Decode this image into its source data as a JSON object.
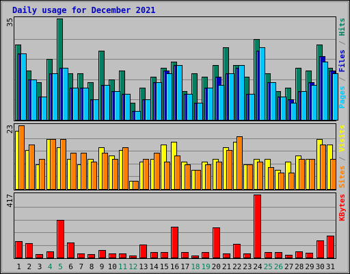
{
  "chart_data": {
    "type": "bar",
    "title": "Daily usage for December 2021",
    "days": [
      "1",
      "2",
      "3",
      "4",
      "5",
      "6",
      "7",
      "8",
      "9",
      "10",
      "11",
      "12",
      "13",
      "14",
      "15",
      "16",
      "17",
      "18",
      "19",
      "20",
      "21",
      "22",
      "23",
      "24",
      "25",
      "26",
      "27",
      "28",
      "29",
      "30",
      "31"
    ],
    "weekend_days": [
      "4",
      "5",
      "11",
      "12",
      "18",
      "19",
      "25",
      "26"
    ],
    "panels": [
      {
        "id": "hits-files-pages",
        "max_label": "35",
        "max": 35,
        "legend": [
          {
            "text": "Pages",
            "color": "#00c8ff"
          },
          {
            "text": " / ",
            "color": "#808080"
          },
          {
            "text": "Files",
            "color": "#0000c0"
          },
          {
            "text": " / ",
            "color": "#808080"
          },
          {
            "text": "Hits",
            "color": "#008060"
          }
        ],
        "series": [
          {
            "name": "Hits",
            "color": "#008060",
            "values": [
              26,
              17,
              13,
              21,
              35,
              16,
              16,
              13,
              24,
              14,
              17,
              6,
              11,
              15,
              18,
              20,
              10,
              16,
              15,
              19,
              25,
              19,
              15,
              28,
              16,
              10,
              11,
              18,
              17,
              26,
              18
            ]
          },
          {
            "name": "Files",
            "color": "#0000c0",
            "values": [
              23,
              14,
              8,
              16,
              18,
              11,
              11,
              7,
              12,
              10,
              9,
              3,
              7,
              13,
              17,
              19,
              9,
              6,
              11,
              15,
              16,
              18,
              9,
              24,
              13,
              8,
              7,
              10,
              13,
              22,
              17
            ]
          },
          {
            "name": "Pages",
            "color": "#00c8ff",
            "values": [
              23,
              14,
              8,
              16,
              18,
              11,
              11,
              7,
              12,
              10,
              9,
              3,
              7,
              13,
              16,
              19,
              9,
              6,
              11,
              12,
              16,
              19,
              9,
              25,
              13,
              8,
              6,
              10,
              12,
              20,
              16
            ]
          }
        ]
      },
      {
        "id": "visits-sites",
        "max_label": "23",
        "max": 23,
        "legend": [
          {
            "text": "Sites",
            "color": "#ff8000"
          },
          {
            "text": " / ",
            "color": "#808080"
          },
          {
            "text": "Visits",
            "color": "#ffff00"
          }
        ],
        "series": [
          {
            "name": "Visits",
            "color": "#ffff00",
            "values": [
              21,
              14,
              9,
              18,
              15,
              11,
              9,
              11,
              15,
              12,
              14,
              3,
              10,
              11,
              16,
              17,
              10,
              7,
              10,
              11,
              15,
              17,
              9,
              11,
              11,
              7,
              10,
              12,
              11,
              18,
              16
            ]
          },
          {
            "name": "Sites",
            "color": "#ff8000",
            "values": [
              23,
              16,
              11,
              18,
              18,
              13,
              13,
              10,
              13,
              11,
              15,
              3,
              11,
              13,
              10,
              12,
              9,
              7,
              9,
              10,
              14,
              19,
              9,
              10,
              8,
              6,
              6,
              11,
              11,
              16,
              11
            ]
          }
        ]
      },
      {
        "id": "kbytes",
        "max_label": "417",
        "max": 417,
        "legend": [
          {
            "text": "KBytes",
            "color": "#ff0000"
          }
        ],
        "series": [
          {
            "name": "KBytes",
            "color": "#ff0000",
            "values": [
              110,
              95,
              22,
              42,
              250,
              98,
              25,
              22,
              50,
              25,
              28,
              14,
              85,
              35,
              38,
              205,
              35,
              15,
              35,
              200,
              25,
              90,
              28,
              417,
              35,
              35,
              18,
              40,
              32,
              115,
              145
            ]
          }
        ]
      }
    ]
  }
}
